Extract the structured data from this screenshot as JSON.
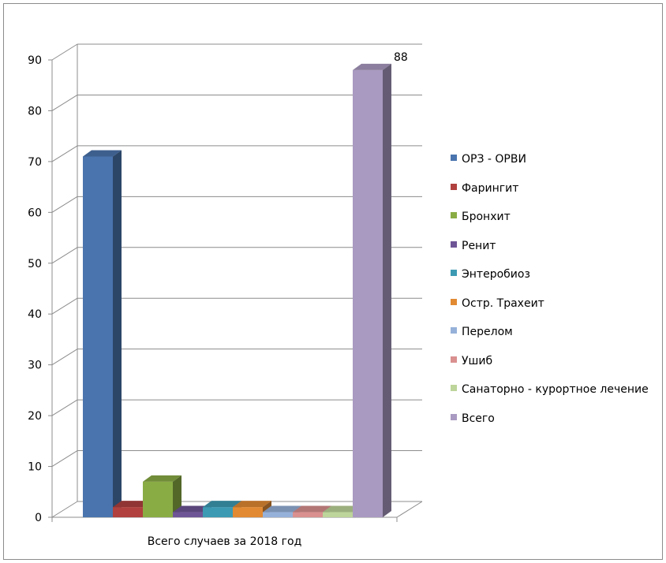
{
  "chart_data": {
    "type": "bar",
    "title": "",
    "xlabel": "",
    "ylabel": "",
    "categories": [
      "Всего случаев за 2018 год"
    ],
    "ylim": [
      0,
      90
    ],
    "yticks": [
      0,
      10,
      20,
      30,
      40,
      50,
      60,
      70,
      80,
      90
    ],
    "legend_position": "right",
    "grid": true,
    "three_d": true,
    "series": [
      {
        "name": "ОРЗ - ОРВИ",
        "values": [
          71
        ],
        "color": "#4a74ad"
      },
      {
        "name": "Фарингит",
        "values": [
          2
        ],
        "color": "#b0413e"
      },
      {
        "name": "Бронхит",
        "values": [
          7
        ],
        "color": "#8aac45"
      },
      {
        "name": "Ренит",
        "values": [
          1
        ],
        "color": "#6e5596"
      },
      {
        "name": "Энтеробиоз",
        "values": [
          2
        ],
        "color": "#3d9ab3"
      },
      {
        "name": "Остр. Трахеит",
        "values": [
          2
        ],
        "color": "#e28a33"
      },
      {
        "name": "Перелом",
        "values": [
          1
        ],
        "color": "#96b1d9"
      },
      {
        "name": "Ушиб",
        "values": [
          1
        ],
        "color": "#d9908f"
      },
      {
        "name": "Санаторно - курортное лечение",
        "values": [
          1
        ],
        "color": "#bdd59a"
      },
      {
        "name": "Всего",
        "values": [
          88
        ],
        "color": "#a99ac1"
      }
    ],
    "data_labels": [
      {
        "series": "Всего",
        "text": "88"
      }
    ]
  }
}
